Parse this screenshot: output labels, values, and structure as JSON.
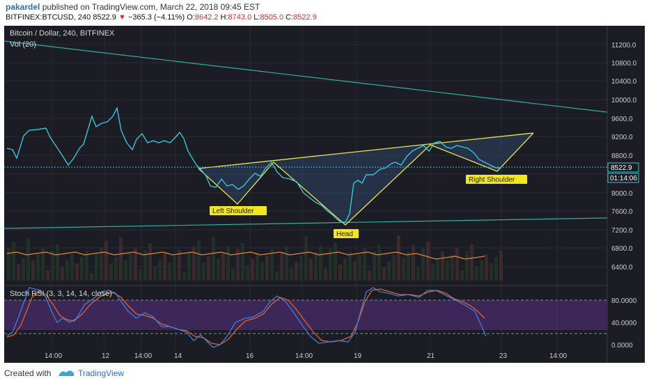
{
  "header": {
    "author": "pakardel",
    "published": " published on TradingView.com, March 22, 2018 09:45 EST",
    "symbol": "BITFINEX:BTCUSD, 240",
    "last": "8522.9",
    "change": "−365.3 (−4.11%)",
    "o_label": "O:",
    "o": "8642.2",
    "h_label": "H:",
    "h": "8743.0",
    "l_label": "L:",
    "l": "8505.0",
    "c_label": "C:",
    "c": "8522.9",
    "down_arrow": "▼"
  },
  "chart": {
    "title": "Bitcoin / Dollar, 240, BITFINEX",
    "volume_label": "Vol (20)",
    "stoch_label": "Stoch RSI (3, 3, 14, 14, close)",
    "price_badge": "8522.9",
    "timer_badge": "01:14:06",
    "pattern_labels": {
      "left_shoulder": "Left Shoulder",
      "head": "Head",
      "right_shoulder": "Right Shoulder"
    },
    "price_ticks": [
      "11200.0",
      "10800.0",
      "10400.0",
      "10000.0",
      "9600.0",
      "9200.0",
      "8800.0",
      "8000.0",
      "7600.0",
      "7200.0",
      "6800.0",
      "6400.0"
    ],
    "stoch_ticks": [
      "80.0000",
      "40.0000",
      "0.0000"
    ],
    "time_ticks": [
      "14:00",
      "12",
      "14:00",
      "14",
      "16",
      "14:00",
      "19",
      "21",
      "23",
      "14:00"
    ],
    "colors": {
      "background": "#1b1c24",
      "price_line": "#39c6dc",
      "pattern": "#e8e84a",
      "trendline": "#2bb3a0",
      "stoch_k": "#3d7fe0",
      "stoch_d": "#e0652a",
      "stoch_band": "#4a2a6a"
    }
  },
  "footer": {
    "created_with": "Created with",
    "brand": "TradingView"
  }
}
